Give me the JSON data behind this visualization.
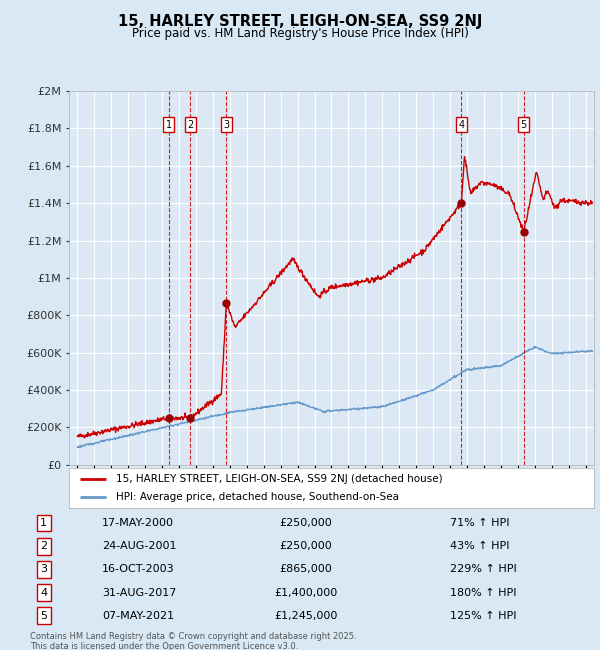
{
  "title": "15, HARLEY STREET, LEIGH-ON-SEA, SS9 2NJ",
  "subtitle": "Price paid vs. HM Land Registry's House Price Index (HPI)",
  "background_color": "#d8e8f4",
  "plot_bg_color": "#dce9f5",
  "grid_color": "#ffffff",
  "sale_dates": [
    2000.38,
    2001.65,
    2003.79,
    2017.67,
    2021.35
  ],
  "sale_prices": [
    250000,
    250000,
    865000,
    1400000,
    1245000
  ],
  "sale_labels": [
    "1",
    "2",
    "3",
    "4",
    "5"
  ],
  "sale_date_strings": [
    "17-MAY-2000",
    "24-AUG-2001",
    "16-OCT-2003",
    "31-AUG-2017",
    "07-MAY-2021"
  ],
  "sale_price_strings": [
    "£250,000",
    "£250,000",
    "£865,000",
    "£1,400,000",
    "£1,245,000"
  ],
  "sale_hpi_strings": [
    "71% ↑ HPI",
    "43% ↑ HPI",
    "229% ↑ HPI",
    "180% ↑ HPI",
    "125% ↑ HPI"
  ],
  "legend_label_red": "15, HARLEY STREET, LEIGH-ON-SEA, SS9 2NJ (detached house)",
  "legend_label_blue": "HPI: Average price, detached house, Southend-on-Sea",
  "footer_text": "Contains HM Land Registry data © Crown copyright and database right 2025.\nThis data is licensed under the Open Government Licence v3.0.",
  "red_color": "#cc0000",
  "blue_color": "#6699cc",
  "marker_color": "#990000",
  "vline_color": "#cc0000",
  "ylabel_color": "#333333",
  "ylim": [
    0,
    2000000
  ],
  "xlim": [
    1994.5,
    2025.5
  ]
}
